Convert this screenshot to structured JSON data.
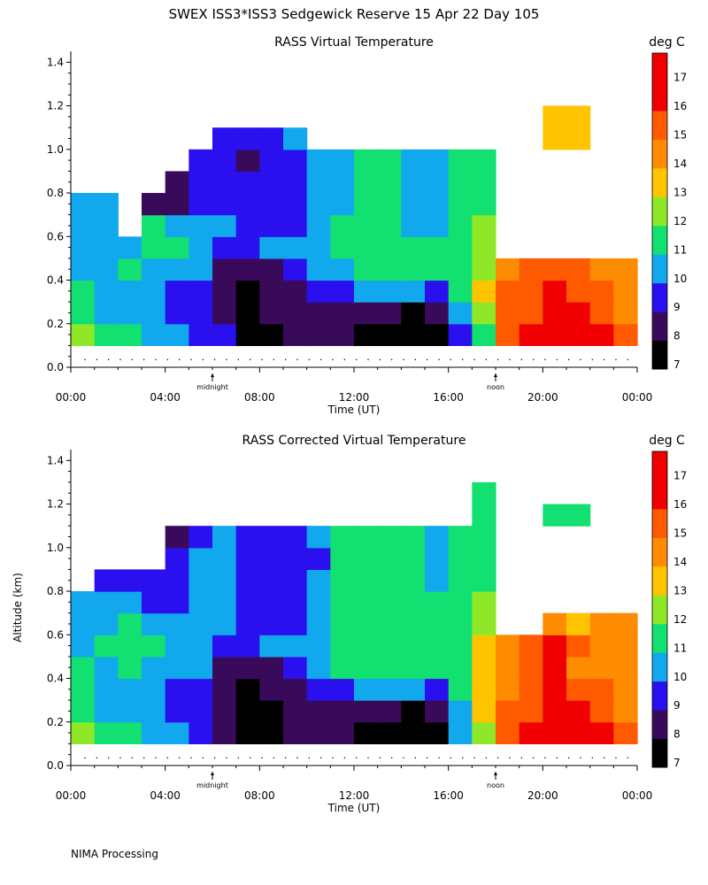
{
  "page": {
    "title": "SWEX ISS3*ISS3 Sedgewick Reserve  15 Apr 22 Day 105",
    "footer": "NIMA Processing"
  },
  "colors": {
    "levels": [
      7,
      8,
      9,
      10,
      11,
      12,
      13,
      14,
      15,
      16,
      17
    ],
    "bands": [
      "#000000",
      "#3a0a5a",
      "#2a10ee",
      "#12a8ee",
      "#12e070",
      "#8ee828",
      "#ffc400",
      "#ff8c00",
      "#ff5a00",
      "#f00000",
      "#f00000"
    ]
  },
  "chart_data": [
    {
      "type": "heatmap",
      "title": "RASS Virtual Temperature",
      "xlabel": "Time (UT)",
      "ylabel": "",
      "colorbar_label": "deg C",
      "x_ticks": [
        "00:00",
        "04:00",
        "08:00",
        "12:00",
        "16:00",
        "20:00",
        "00:00"
      ],
      "x_hours": [
        0,
        4,
        8,
        12,
        16,
        20,
        24
      ],
      "y_ticks": [
        "0.0",
        "0.2",
        "0.4",
        "0.6",
        "0.8",
        "1.0",
        "1.2",
        "1.4"
      ],
      "y_values": [
        0.0,
        0.2,
        0.4,
        0.6,
        0.8,
        1.0,
        1.2,
        1.4
      ],
      "xlim": [
        0,
        24
      ],
      "ylim": [
        0,
        1.45
      ],
      "colorbar_ticks": [
        "7",
        "8",
        "9",
        "10",
        "11",
        "12",
        "13",
        "14",
        "15",
        "16",
        "17"
      ],
      "markers": [
        {
          "label": "midnight",
          "hour": 6
        },
        {
          "label": "noon",
          "hour": 18
        }
      ],
      "x_hours_grid": [
        0.5,
        1.5,
        2.5,
        3.5,
        4.5,
        5.5,
        6.5,
        7.5,
        8.5,
        9.5,
        10.5,
        11.5,
        12.5,
        13.5,
        14.5,
        15.5,
        16.5,
        17.5,
        18.5,
        19.5,
        20.5,
        21.5,
        22.5,
        23.5
      ],
      "altitudes": [
        0.15,
        0.25,
        0.35,
        0.45,
        0.55,
        0.65,
        0.75,
        0.85,
        0.95,
        1.05,
        1.15
      ],
      "temps": [
        [
          12,
          11,
          11,
          10,
          10,
          9,
          9,
          7,
          7,
          8,
          8,
          8,
          7,
          7,
          7,
          7,
          9,
          11,
          15,
          16,
          16,
          16,
          16,
          15
        ],
        [
          11,
          10,
          10,
          10,
          9,
          9,
          8,
          7,
          8,
          8,
          8,
          8,
          8,
          8,
          7,
          8,
          10,
          12,
          15,
          15,
          16,
          16,
          15,
          14
        ],
        [
          11,
          10,
          10,
          10,
          9,
          9,
          8,
          7,
          8,
          8,
          9,
          9,
          10,
          10,
          10,
          9,
          11,
          13,
          15,
          15,
          16,
          15,
          15,
          14
        ],
        [
          10,
          10,
          11,
          10,
          10,
          10,
          8,
          8,
          8,
          9,
          10,
          10,
          11,
          11,
          11,
          11,
          11,
          12,
          14,
          15,
          15,
          15,
          14,
          14
        ],
        [
          10,
          10,
          10,
          11,
          11,
          10,
          9,
          9,
          10,
          10,
          10,
          11,
          11,
          11,
          11,
          11,
          11,
          12,
          null,
          null,
          null,
          null,
          null,
          null
        ],
        [
          10,
          10,
          null,
          11,
          10,
          10,
          10,
          9,
          9,
          9,
          10,
          11,
          11,
          11,
          10,
          10,
          11,
          12,
          null,
          null,
          null,
          null,
          null,
          null
        ],
        [
          10,
          10,
          null,
          8,
          8,
          9,
          9,
          9,
          9,
          9,
          10,
          10,
          11,
          11,
          10,
          10,
          11,
          11,
          null,
          null,
          null,
          null,
          null,
          null
        ],
        [
          null,
          null,
          null,
          null,
          8,
          9,
          9,
          9,
          9,
          9,
          10,
          10,
          11,
          11,
          10,
          10,
          11,
          11,
          null,
          null,
          null,
          null,
          null,
          null
        ],
        [
          null,
          null,
          null,
          null,
          null,
          9,
          9,
          8,
          9,
          9,
          10,
          10,
          11,
          11,
          10,
          10,
          11,
          11,
          null,
          null,
          null,
          null,
          null,
          null
        ],
        [
          null,
          null,
          null,
          null,
          null,
          null,
          9,
          9,
          9,
          10,
          null,
          null,
          null,
          null,
          null,
          null,
          null,
          null,
          null,
          null,
          13,
          13,
          null,
          null
        ],
        [
          null,
          null,
          null,
          null,
          null,
          null,
          null,
          null,
          null,
          null,
          null,
          null,
          null,
          null,
          null,
          null,
          null,
          null,
          null,
          null,
          13,
          13,
          null,
          null
        ]
      ]
    },
    {
      "type": "heatmap",
      "title": "RASS Corrected Virtual Temperature",
      "xlabel": "Time (UT)",
      "ylabel": "Altitude (km)",
      "colorbar_label": "deg C",
      "x_ticks": [
        "00:00",
        "04:00",
        "08:00",
        "12:00",
        "16:00",
        "20:00",
        "00:00"
      ],
      "x_hours": [
        0,
        4,
        8,
        12,
        16,
        20,
        24
      ],
      "y_ticks": [
        "0.0",
        "0.2",
        "0.4",
        "0.6",
        "0.8",
        "1.0",
        "1.2",
        "1.4"
      ],
      "y_values": [
        0.0,
        0.2,
        0.4,
        0.6,
        0.8,
        1.0,
        1.2,
        1.4
      ],
      "xlim": [
        0,
        24
      ],
      "ylim": [
        0,
        1.45
      ],
      "colorbar_ticks": [
        "7",
        "8",
        "9",
        "10",
        "11",
        "12",
        "13",
        "14",
        "15",
        "16",
        "17"
      ],
      "markers": [
        {
          "label": "midnight",
          "hour": 6
        },
        {
          "label": "noon",
          "hour": 18
        }
      ],
      "x_hours_grid": [
        0.5,
        1.5,
        2.5,
        3.5,
        4.5,
        5.5,
        6.5,
        7.5,
        8.5,
        9.5,
        10.5,
        11.5,
        12.5,
        13.5,
        14.5,
        15.5,
        16.5,
        17.5,
        18.5,
        19.5,
        20.5,
        21.5,
        22.5,
        23.5
      ],
      "altitudes": [
        0.15,
        0.25,
        0.35,
        0.45,
        0.55,
        0.65,
        0.75,
        0.85,
        0.95,
        1.05,
        1.15,
        1.25
      ],
      "temps": [
        [
          12,
          11,
          11,
          10,
          10,
          9,
          8,
          7,
          7,
          8,
          8,
          8,
          7,
          7,
          7,
          7,
          10,
          12,
          15,
          16,
          16,
          16,
          16,
          15
        ],
        [
          11,
          10,
          10,
          10,
          9,
          9,
          8,
          7,
          7,
          8,
          8,
          8,
          8,
          8,
          7,
          8,
          10,
          13,
          15,
          15,
          16,
          16,
          15,
          14
        ],
        [
          11,
          10,
          10,
          10,
          9,
          9,
          8,
          7,
          8,
          8,
          9,
          9,
          10,
          10,
          10,
          9,
          11,
          13,
          14,
          15,
          16,
          15,
          15,
          14
        ],
        [
          11,
          10,
          11,
          10,
          10,
          10,
          8,
          8,
          8,
          9,
          10,
          11,
          11,
          11,
          11,
          11,
          11,
          13,
          14,
          15,
          16,
          14,
          14,
          14
        ],
        [
          10,
          11,
          11,
          11,
          10,
          10,
          9,
          9,
          10,
          10,
          10,
          11,
          11,
          11,
          11,
          11,
          11,
          13,
          14,
          15,
          16,
          15,
          14,
          14
        ],
        [
          10,
          10,
          11,
          10,
          10,
          10,
          10,
          9,
          9,
          9,
          10,
          11,
          11,
          11,
          11,
          11,
          11,
          12,
          null,
          null,
          14,
          13,
          14,
          14
        ],
        [
          10,
          10,
          10,
          9,
          9,
          10,
          10,
          9,
          9,
          9,
          10,
          11,
          11,
          11,
          11,
          11,
          11,
          12,
          null,
          null,
          null,
          null,
          null,
          null
        ],
        [
          null,
          9,
          9,
          9,
          9,
          10,
          10,
          9,
          9,
          9,
          10,
          11,
          11,
          11,
          11,
          10,
          11,
          11,
          null,
          null,
          null,
          null,
          null,
          null
        ],
        [
          null,
          null,
          null,
          null,
          9,
          10,
          10,
          9,
          9,
          9,
          9,
          11,
          11,
          11,
          11,
          10,
          11,
          11,
          null,
          null,
          null,
          null,
          null,
          null
        ],
        [
          null,
          null,
          null,
          null,
          8,
          9,
          10,
          9,
          9,
          9,
          10,
          11,
          11,
          11,
          11,
          10,
          11,
          11,
          null,
          null,
          null,
          null,
          null,
          null
        ],
        [
          null,
          null,
          null,
          null,
          null,
          null,
          null,
          null,
          null,
          null,
          null,
          null,
          null,
          null,
          null,
          null,
          null,
          11,
          null,
          null,
          11,
          11,
          null,
          null
        ],
        [
          null,
          null,
          null,
          null,
          null,
          null,
          null,
          null,
          null,
          null,
          null,
          null,
          null,
          null,
          null,
          null,
          null,
          11,
          null,
          null,
          null,
          null,
          null,
          null
        ]
      ]
    }
  ]
}
